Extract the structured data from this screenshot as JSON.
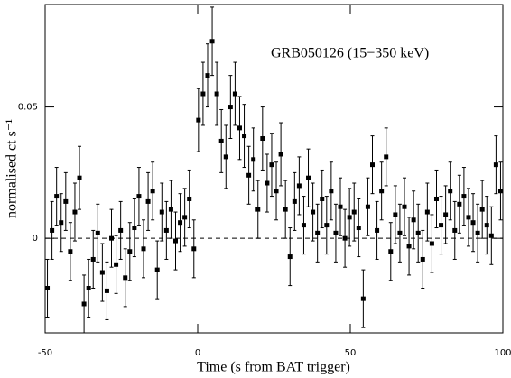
{
  "chart_data": {
    "type": "scatter",
    "annotation": "GRB050126 (15−350 keV)",
    "x_label": "Time (s from BAT trigger)",
    "y_label": "normalised ct s⁻¹",
    "color": "#000000",
    "xlim": [
      -50,
      100
    ],
    "xticks": [
      -50,
      0,
      50,
      100
    ],
    "ylim": [
      -0.036,
      0.089
    ],
    "yticks": [
      0,
      0.05
    ],
    "hline": 0,
    "x": [
      -49.25,
      -47.75,
      -46.25,
      -44.75,
      -43.25,
      -41.75,
      -40.25,
      -38.75,
      -37.25,
      -35.75,
      -34.25,
      -32.75,
      -31.25,
      -29.75,
      -28.25,
      -26.75,
      -25.25,
      -23.75,
      -22.25,
      -20.75,
      -19.25,
      -17.75,
      -16.25,
      -14.75,
      -13.25,
      -11.75,
      -10.25,
      -8.75,
      -7.25,
      -5.75,
      -4.25,
      -2.75,
      -1.25,
      0.25,
      1.75,
      3.25,
      4.75,
      6.25,
      7.75,
      9.25,
      10.75,
      12.25,
      13.75,
      15.25,
      16.75,
      18.25,
      19.75,
      21.25,
      22.75,
      24.25,
      25.75,
      27.25,
      28.75,
      30.25,
      31.75,
      33.25,
      34.75,
      36.25,
      37.75,
      39.25,
      40.75,
      42.25,
      43.75,
      45.25,
      46.75,
      48.25,
      49.75,
      51.25,
      52.75,
      54.25,
      55.75,
      57.25,
      58.75,
      60.25,
      61.75,
      63.25,
      64.75,
      66.25,
      67.75,
      69.25,
      70.75,
      72.25,
      73.75,
      75.25,
      76.75,
      78.25,
      79.75,
      81.25,
      82.75,
      84.25,
      85.75,
      87.25,
      88.75,
      90.25,
      91.75,
      93.25,
      94.75,
      96.25,
      97.75,
      99.25
    ],
    "values": [
      -0.019,
      0.003,
      0.016,
      0.006,
      0.014,
      -0.005,
      0.01,
      0.023,
      -0.025,
      -0.019,
      -0.008,
      0.002,
      -0.013,
      -0.02,
      0.0,
      -0.01,
      0.003,
      -0.015,
      -0.005,
      0.004,
      0.016,
      -0.004,
      0.014,
      0.018,
      -0.012,
      0.01,
      0.003,
      0.011,
      -0.001,
      0.006,
      0.008,
      0.015,
      -0.004,
      0.045,
      0.055,
      0.062,
      0.075,
      0.055,
      0.037,
      0.031,
      0.05,
      0.055,
      0.042,
      0.039,
      0.024,
      0.03,
      0.011,
      0.038,
      0.021,
      0.028,
      0.018,
      0.032,
      0.011,
      -0.007,
      0.014,
      0.02,
      0.005,
      0.023,
      0.01,
      0.002,
      0.015,
      0.005,
      0.018,
      0.002,
      0.012,
      0.0,
      0.008,
      0.01,
      0.004,
      -0.023,
      0.012,
      0.028,
      0.003,
      0.018,
      0.031,
      -0.005,
      0.009,
      0.002,
      0.012,
      -0.003,
      0.007,
      0.002,
      -0.008,
      0.01,
      -0.002,
      0.015,
      0.005,
      0.009,
      0.018,
      0.003,
      0.013,
      0.016,
      0.008,
      0.006,
      0.002,
      0.011,
      0.005,
      0.001,
      0.028,
      0.018
    ],
    "errors": [
      0.011,
      0.011,
      0.011,
      0.011,
      0.011,
      0.011,
      0.011,
      0.012,
      0.011,
      0.011,
      0.011,
      0.011,
      0.011,
      0.011,
      0.011,
      0.011,
      0.011,
      0.011,
      0.011,
      0.011,
      0.011,
      0.011,
      0.011,
      0.011,
      0.011,
      0.011,
      0.011,
      0.011,
      0.011,
      0.011,
      0.011,
      0.011,
      0.011,
      0.012,
      0.012,
      0.012,
      0.013,
      0.012,
      0.012,
      0.012,
      0.012,
      0.012,
      0.012,
      0.012,
      0.011,
      0.012,
      0.011,
      0.012,
      0.011,
      0.012,
      0.011,
      0.012,
      0.011,
      0.011,
      0.011,
      0.011,
      0.011,
      0.011,
      0.011,
      0.011,
      0.011,
      0.011,
      0.011,
      0.011,
      0.011,
      0.011,
      0.011,
      0.011,
      0.011,
      0.011,
      0.011,
      0.011,
      0.011,
      0.011,
      0.011,
      0.011,
      0.011,
      0.011,
      0.011,
      0.011,
      0.011,
      0.011,
      0.011,
      0.011,
      0.011,
      0.011,
      0.011,
      0.011,
      0.011,
      0.011,
      0.011,
      0.011,
      0.011,
      0.011,
      0.011,
      0.011,
      0.011,
      0.011,
      0.011,
      0.011
    ]
  }
}
